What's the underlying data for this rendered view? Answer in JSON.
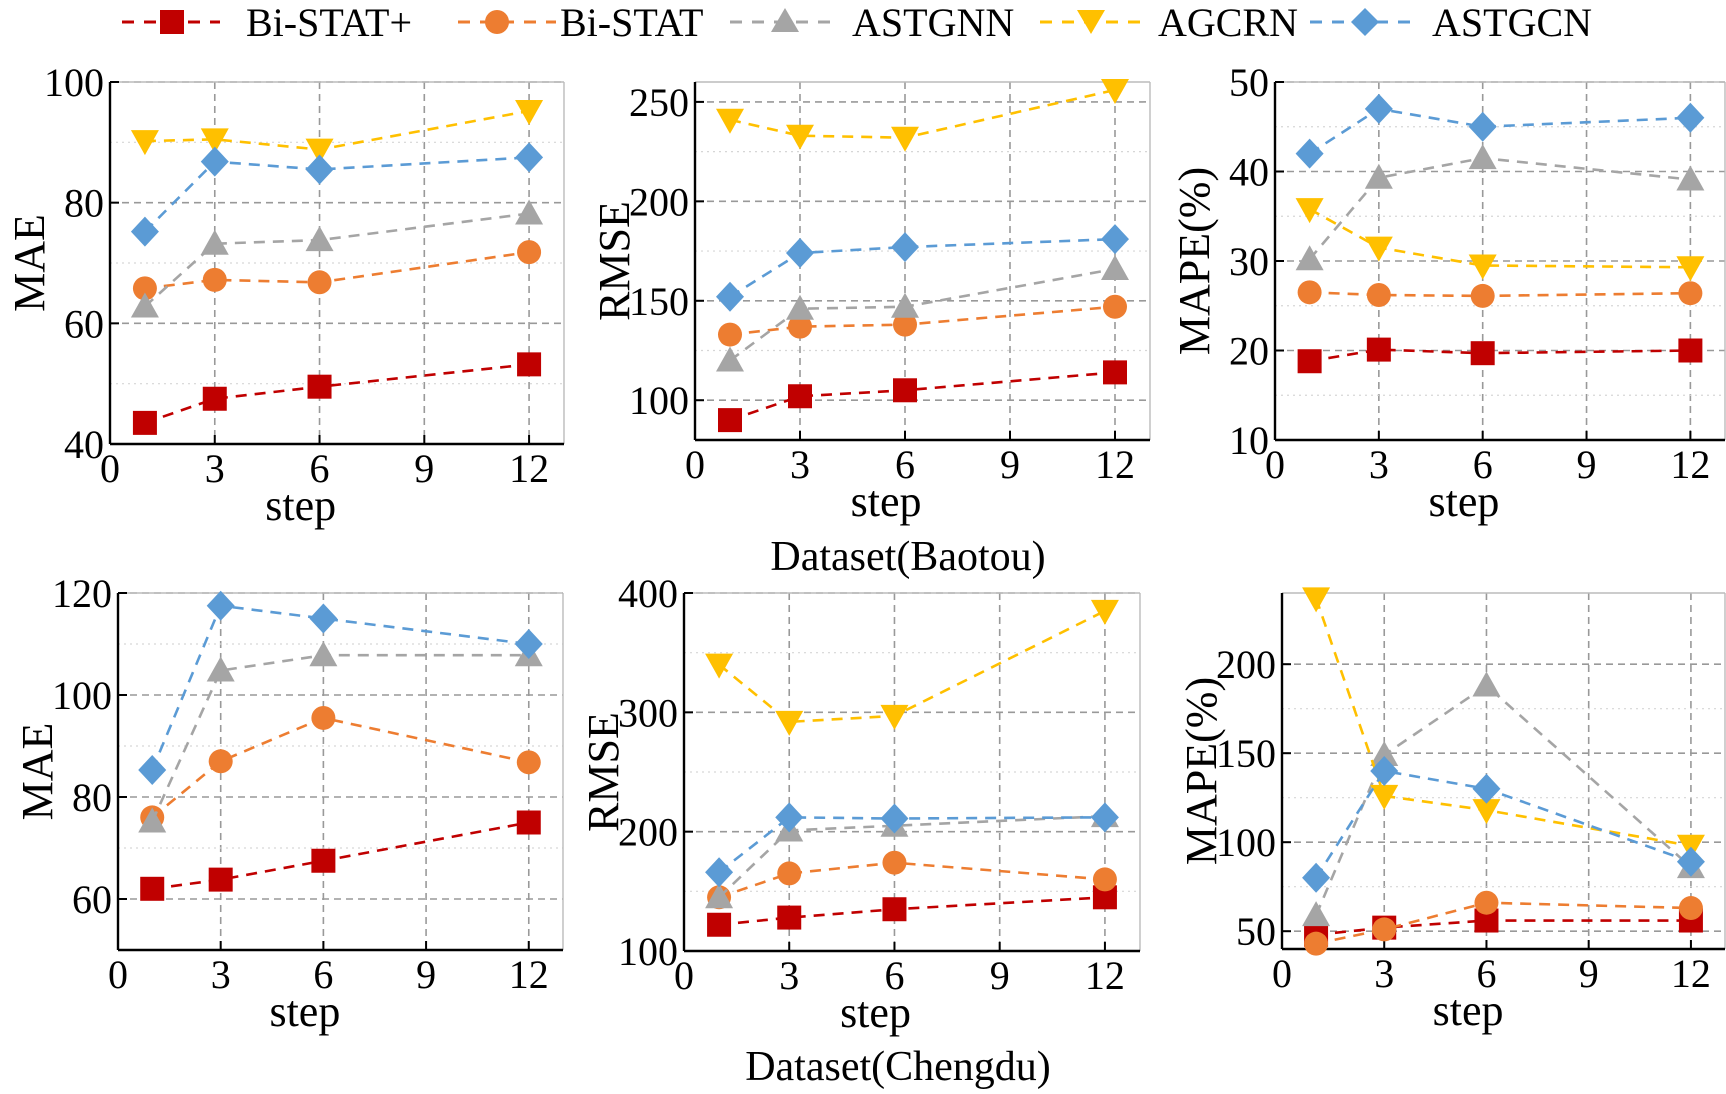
{
  "legend": [
    {
      "name": "Bi-STAT+",
      "color": "#c00000",
      "marker": "square"
    },
    {
      "name": "Bi-STAT",
      "color": "#ed7d31",
      "marker": "circle"
    },
    {
      "name": "ASTGNN",
      "color": "#a5a5a5",
      "marker": "triangle-up"
    },
    {
      "name": "AGCRN",
      "color": "#ffc000",
      "marker": "triangle-down"
    },
    {
      "name": "ASTGCN",
      "color": "#5b9bd5",
      "marker": "diamond"
    }
  ],
  "captions": {
    "baotou": "Dataset(Baotou)",
    "chengdu": "Dataset(Chengdu)"
  },
  "chart_data": [
    {
      "id": "baotou-mae",
      "type": "line",
      "dataset": "Baotou",
      "xlabel": "step",
      "ylabel": "MAE",
      "xlim": [
        0,
        13
      ],
      "ylim": [
        40,
        100
      ],
      "xticks": [
        0,
        3,
        6,
        9,
        12
      ],
      "yticks": [
        40,
        60,
        80,
        100
      ],
      "x": [
        1,
        3,
        6,
        12
      ],
      "series": [
        {
          "name": "Bi-STAT+",
          "values": [
            43.5,
            47.5,
            49.5,
            53.2
          ]
        },
        {
          "name": "Bi-STAT",
          "values": [
            65.8,
            67.2,
            66.8,
            71.8
          ]
        },
        {
          "name": "ASTGNN",
          "values": [
            62.8,
            73.2,
            73.8,
            78.2
          ]
        },
        {
          "name": "AGCRN",
          "values": [
            90.2,
            90.5,
            88.8,
            95.2
          ]
        },
        {
          "name": "ASTGCN",
          "values": [
            75.2,
            86.8,
            85.5,
            87.5
          ]
        }
      ]
    },
    {
      "id": "baotou-rmse",
      "type": "line",
      "dataset": "Baotou",
      "xlabel": "step",
      "ylabel": "RMSE",
      "xlim": [
        0,
        13
      ],
      "ylim": [
        80,
        260
      ],
      "xticks": [
        0,
        3,
        6,
        9,
        12
      ],
      "yticks": [
        100,
        150,
        200,
        250
      ],
      "x": [
        1,
        3,
        6,
        12
      ],
      "series": [
        {
          "name": "Bi-STAT+",
          "values": [
            90,
            102,
            105,
            114
          ]
        },
        {
          "name": "Bi-STAT",
          "values": [
            133,
            137,
            138,
            147
          ]
        },
        {
          "name": "ASTGNN",
          "values": [
            120,
            146,
            147,
            166
          ]
        },
        {
          "name": "AGCRN",
          "values": [
            241,
            233,
            232,
            256
          ]
        },
        {
          "name": "ASTGCN",
          "values": [
            152,
            174,
            177,
            181
          ]
        }
      ]
    },
    {
      "id": "baotou-mape",
      "type": "line",
      "dataset": "Baotou",
      "xlabel": "step",
      "ylabel": "MAPE(%)",
      "xlim": [
        0,
        13
      ],
      "ylim": [
        10,
        50
      ],
      "xticks": [
        0,
        3,
        6,
        9,
        12
      ],
      "yticks": [
        10,
        20,
        30,
        40,
        50
      ],
      "x": [
        1,
        3,
        6,
        12
      ],
      "series": [
        {
          "name": "Bi-STAT+",
          "values": [
            18.8,
            20.1,
            19.7,
            20.0
          ]
        },
        {
          "name": "Bi-STAT",
          "values": [
            26.5,
            26.2,
            26.1,
            26.4
          ]
        },
        {
          "name": "ASTGNN",
          "values": [
            30.2,
            39.3,
            41.5,
            39.1
          ]
        },
        {
          "name": "AGCRN",
          "values": [
            35.8,
            31.5,
            29.5,
            29.3
          ]
        },
        {
          "name": "ASTGCN",
          "values": [
            42.0,
            47.0,
            45.0,
            46.0
          ]
        }
      ]
    },
    {
      "id": "chengdu-mae",
      "type": "line",
      "dataset": "Chengdu",
      "xlabel": "step",
      "ylabel": "MAE",
      "xlim": [
        0,
        13
      ],
      "ylim": [
        50,
        120
      ],
      "xticks": [
        0,
        3,
        6,
        9,
        12
      ],
      "yticks": [
        60,
        80,
        100,
        120
      ],
      "x": [
        1,
        3,
        6,
        12
      ],
      "series": [
        {
          "name": "Bi-STAT+",
          "values": [
            62,
            63.8,
            67.5,
            75
          ]
        },
        {
          "name": "Bi-STAT",
          "values": [
            76,
            87,
            95.5,
            86.8
          ]
        },
        {
          "name": "ASTGNN",
          "values": [
            75.2,
            104.8,
            107.8,
            107.8
          ]
        },
        {
          "name": "ASTGCN",
          "values": [
            85.3,
            117.5,
            115,
            110
          ]
        }
      ]
    },
    {
      "id": "chengdu-rmse",
      "type": "line",
      "dataset": "Chengdu",
      "xlabel": "step",
      "ylabel": "RMSE",
      "xlim": [
        0,
        13
      ],
      "ylim": [
        100,
        400
      ],
      "xticks": [
        0,
        3,
        6,
        9,
        12
      ],
      "yticks": [
        100,
        200,
        300,
        400
      ],
      "x": [
        1,
        3,
        6,
        12
      ],
      "series": [
        {
          "name": "Bi-STAT+",
          "values": [
            122,
            128,
            135,
            145
          ]
        },
        {
          "name": "Bi-STAT",
          "values": [
            145,
            165,
            174,
            160
          ]
        },
        {
          "name": "ASTGNN",
          "values": [
            145,
            201,
            205,
            213
          ]
        },
        {
          "name": "AGCRN",
          "values": [
            340,
            292,
            297,
            385
          ]
        },
        {
          "name": "ASTGCN",
          "values": [
            166,
            212,
            211,
            212
          ]
        }
      ]
    },
    {
      "id": "chengdu-mape",
      "type": "line",
      "dataset": "Chengdu",
      "xlabel": "step",
      "ylabel": "MAPE(%)",
      "xlim": [
        0,
        13
      ],
      "ylim": [
        40,
        240
      ],
      "xticks": [
        0,
        3,
        6,
        9,
        12
      ],
      "yticks": [
        50,
        100,
        150,
        200
      ],
      "x": [
        1,
        3,
        6,
        12
      ],
      "series": [
        {
          "name": "Bi-STAT+",
          "values": [
            48,
            52,
            56,
            56
          ]
        },
        {
          "name": "Bi-STAT",
          "values": [
            43,
            51,
            66,
            63
          ]
        },
        {
          "name": "ASTGNN",
          "values": [
            59,
            149,
            188,
            86
          ]
        },
        {
          "name": "AGCRN",
          "values": [
            237,
            126,
            118,
            98
          ]
        },
        {
          "name": "ASTGCN",
          "values": [
            80,
            140,
            130,
            89
          ]
        }
      ]
    }
  ]
}
